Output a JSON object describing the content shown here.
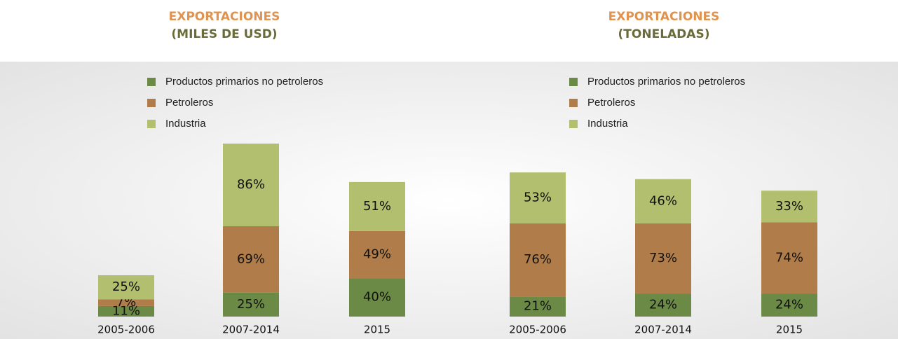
{
  "chart_data": [
    {
      "type": "bar",
      "stacked": true,
      "title": "EXPORTACIONES",
      "subtitle": "(MILES DE USD)",
      "categories": [
        "2005-2006",
        "2007-2014",
        "2015"
      ],
      "series": [
        {
          "name": "Productos primarios no petroleros",
          "color": "#6a8a45",
          "values": [
            11,
            25,
            40
          ],
          "value_labels": [
            "11%",
            "25%",
            "40%"
          ]
        },
        {
          "name": "Petroleros",
          "color": "#b07d4a",
          "values": [
            7,
            69,
            49
          ],
          "value_labels": [
            "7%",
            "69%",
            "49%"
          ]
        },
        {
          "name": "Industria",
          "color": "#b2bf6e",
          "values": [
            25,
            86,
            51
          ],
          "value_labels": [
            "25%",
            "86%",
            "51%"
          ]
        }
      ]
    },
    {
      "type": "bar",
      "stacked": true,
      "title": "EXPORTACIONES",
      "subtitle": "(TONELADAS)",
      "categories": [
        "2005-2006",
        "2007-2014",
        "2015"
      ],
      "series": [
        {
          "name": "Productos primarios no petroleros",
          "color": "#6a8a45",
          "values": [
            21,
            24,
            24
          ],
          "value_labels": [
            "21%",
            "24%",
            "24%"
          ]
        },
        {
          "name": "Petroleros",
          "color": "#b07d4a",
          "values": [
            76,
            73,
            74
          ],
          "value_labels": [
            "76%",
            "73%",
            "74%"
          ]
        },
        {
          "name": "Industria",
          "color": "#b2bf6e",
          "values": [
            53,
            46,
            33
          ],
          "value_labels": [
            "53%",
            "46%",
            "33%"
          ]
        }
      ]
    }
  ]
}
